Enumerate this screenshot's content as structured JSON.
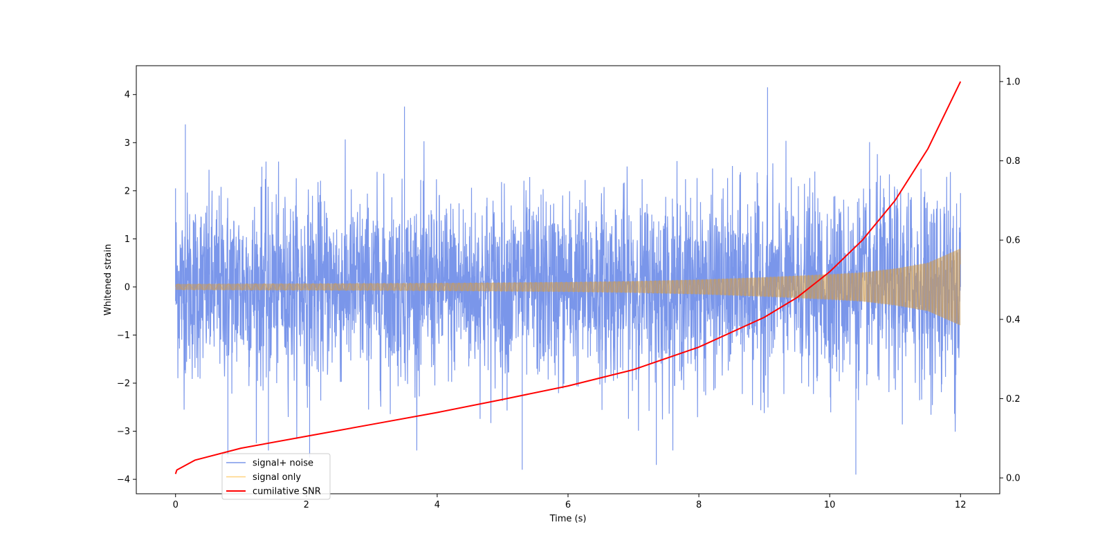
{
  "chart_data": {
    "type": "line",
    "xlabel": "Time (s)",
    "ylabel": "Whitened strain",
    "ylabel_right": "",
    "xlim": [
      -0.6,
      12.6
    ],
    "ylim": [
      -4.3,
      4.6
    ],
    "ylim_right": [
      -0.04,
      1.04
    ],
    "x_ticks": [
      0,
      2,
      4,
      6,
      8,
      10,
      12
    ],
    "y_ticks": [
      -4,
      -3,
      -2,
      -1,
      0,
      1,
      2,
      3,
      4
    ],
    "y_ticks_right": [
      0.0,
      0.2,
      0.4,
      0.6,
      0.8,
      1.0
    ],
    "x_tick_labels": [
      "0",
      "2",
      "4",
      "6",
      "8",
      "10",
      "12"
    ],
    "y_tick_labels": [
      "−4",
      "−3",
      "−2",
      "−1",
      "0",
      "1",
      "2",
      "3",
      "4"
    ],
    "y_tick_labels_right": [
      "0.0",
      "0.2",
      "0.4",
      "0.6",
      "0.8",
      "1.0"
    ],
    "grid": false,
    "legend_position": "lower-left",
    "series": [
      {
        "name": "signal+ noise",
        "color": "#4169e1",
        "axis": "left",
        "description_points": {
          "x": [
            0,
            0.15,
            0.8,
            1.32,
            1.42,
            2.05,
            3.5,
            5.3,
            7.35,
            9.05,
            10.4,
            12.0
          ],
          "y": [
            2.05,
            3.38,
            -3.55,
            2.5,
            -3.4,
            -3.55,
            3.75,
            -3.8,
            -3.7,
            4.15,
            -3.9,
            1.95
          ]
        },
        "typical_range": [
          -2.4,
          2.4
        ]
      },
      {
        "name": "signal only",
        "color": "#ffa500",
        "axis": "left",
        "x": [
          0,
          1,
          2,
          3,
          4,
          5,
          6,
          7,
          8,
          9,
          10,
          10.5,
          11,
          11.5,
          12
        ],
        "envelope": [
          0.06,
          0.065,
          0.07,
          0.075,
          0.08,
          0.09,
          0.1,
          0.12,
          0.15,
          0.2,
          0.26,
          0.3,
          0.38,
          0.5,
          0.8
        ]
      },
      {
        "name": "cumilative SNR",
        "color": "#ff0000",
        "axis": "right",
        "x": [
          0,
          0.02,
          0.3,
          1,
          2,
          3,
          4,
          5,
          6,
          7,
          8,
          9,
          9.5,
          10,
          10.5,
          11,
          11.5,
          12
        ],
        "y": [
          0.01,
          0.02,
          0.045,
          0.075,
          0.105,
          0.135,
          0.165,
          0.198,
          0.232,
          0.273,
          0.33,
          0.405,
          0.455,
          0.52,
          0.6,
          0.7,
          0.83,
          1.0
        ]
      }
    ]
  }
}
